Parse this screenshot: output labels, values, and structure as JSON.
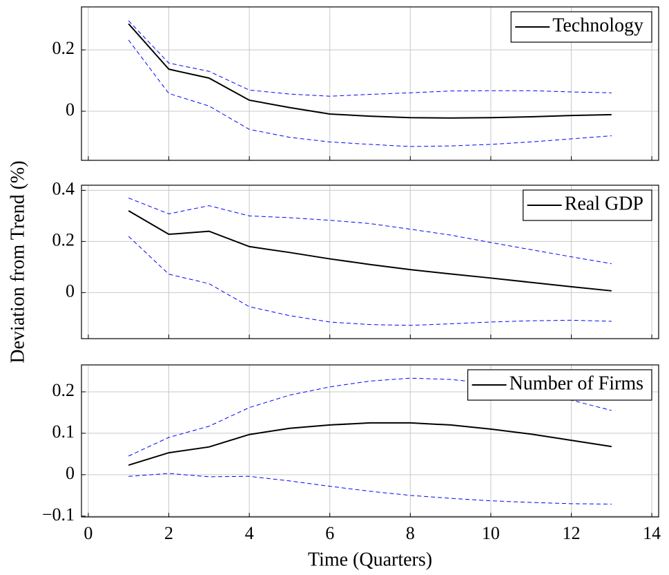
{
  "chart_data": [
    {
      "type": "line",
      "xlim": [
        -0.17,
        14.17
      ],
      "xticks": [
        0,
        2,
        4,
        6,
        8,
        10,
        12,
        14
      ],
      "ylim": [
        -0.16,
        0.34
      ],
      "yticks": [
        0,
        0.2
      ],
      "grid": true,
      "legend": "upper right",
      "x": [
        1,
        2,
        3,
        4,
        5,
        6,
        7,
        8,
        9,
        10,
        11,
        12,
        13
      ],
      "series": [
        {
          "name": "Technology",
          "color": "#000000",
          "style": "solid",
          "values": [
            0.285,
            0.137,
            0.108,
            0.036,
            0.012,
            -0.009,
            -0.016,
            -0.021,
            -0.022,
            -0.021,
            -0.018,
            -0.014,
            -0.011
          ]
        },
        {
          "color": "#0000ff",
          "style": "dashed",
          "values": [
            0.295,
            0.157,
            0.13,
            0.069,
            0.056,
            0.049,
            0.055,
            0.06,
            0.066,
            0.067,
            0.067,
            0.063,
            0.06
          ]
        },
        {
          "color": "#0000ff",
          "style": "dashed",
          "values": [
            0.232,
            0.058,
            0.017,
            -0.059,
            -0.085,
            -0.1,
            -0.108,
            -0.115,
            -0.113,
            -0.108,
            -0.1,
            -0.09,
            -0.08
          ]
        }
      ]
    },
    {
      "type": "line",
      "xlim": [
        -0.17,
        14.17
      ],
      "xticks": [
        0,
        2,
        4,
        6,
        8,
        10,
        12,
        14
      ],
      "ylim": [
        -0.18,
        0.42
      ],
      "yticks": [
        0,
        0.2,
        0.4
      ],
      "grid": true,
      "legend": "upper right",
      "ylabel": "Deviation from Trend (%)",
      "x": [
        1,
        2,
        3,
        4,
        5,
        6,
        7,
        8,
        9,
        10,
        11,
        12,
        13
      ],
      "series": [
        {
          "name": "Real GDP",
          "color": "#000000",
          "style": "solid",
          "values": [
            0.32,
            0.228,
            0.24,
            0.18,
            0.157,
            0.132,
            0.11,
            0.09,
            0.073,
            0.057,
            0.04,
            0.023,
            0.007
          ]
        },
        {
          "color": "#0000ff",
          "style": "dashed",
          "values": [
            0.37,
            0.308,
            0.34,
            0.3,
            0.293,
            0.283,
            0.27,
            0.248,
            0.225,
            0.196,
            0.168,
            0.14,
            0.113
          ]
        },
        {
          "color": "#0000ff",
          "style": "dashed",
          "values": [
            0.22,
            0.072,
            0.035,
            -0.055,
            -0.09,
            -0.115,
            -0.125,
            -0.128,
            -0.122,
            -0.115,
            -0.11,
            -0.108,
            -0.112
          ]
        }
      ]
    },
    {
      "type": "line",
      "xlim": [
        -0.17,
        14.17
      ],
      "xticks": [
        0,
        2,
        4,
        6,
        8,
        10,
        12,
        14
      ],
      "ylim": [
        -0.102,
        0.265
      ],
      "yticks": [
        {
          "value": -0.1,
          "label": "−0.1"
        },
        0,
        0.1,
        0.2
      ],
      "grid": true,
      "legend": "upper right",
      "xlabel": "Time (Quarters)",
      "x": [
        1,
        2,
        3,
        4,
        5,
        6,
        7,
        8,
        9,
        10,
        11,
        12,
        13
      ],
      "series": [
        {
          "name": "Number of Firms",
          "color": "#000000",
          "style": "solid",
          "values": [
            0.023,
            0.053,
            0.067,
            0.097,
            0.112,
            0.12,
            0.125,
            0.125,
            0.12,
            0.11,
            0.098,
            0.083,
            0.068
          ]
        },
        {
          "color": "#0000ff",
          "style": "dashed",
          "values": [
            0.045,
            0.09,
            0.117,
            0.162,
            0.192,
            0.212,
            0.226,
            0.233,
            0.23,
            0.22,
            0.205,
            0.18,
            0.155
          ]
        },
        {
          "color": "#0000ff",
          "style": "dashed",
          "values": [
            -0.004,
            0.003,
            -0.005,
            -0.004,
            -0.015,
            -0.028,
            -0.04,
            -0.05,
            -0.057,
            -0.063,
            -0.067,
            -0.07,
            -0.071
          ]
        }
      ]
    }
  ]
}
